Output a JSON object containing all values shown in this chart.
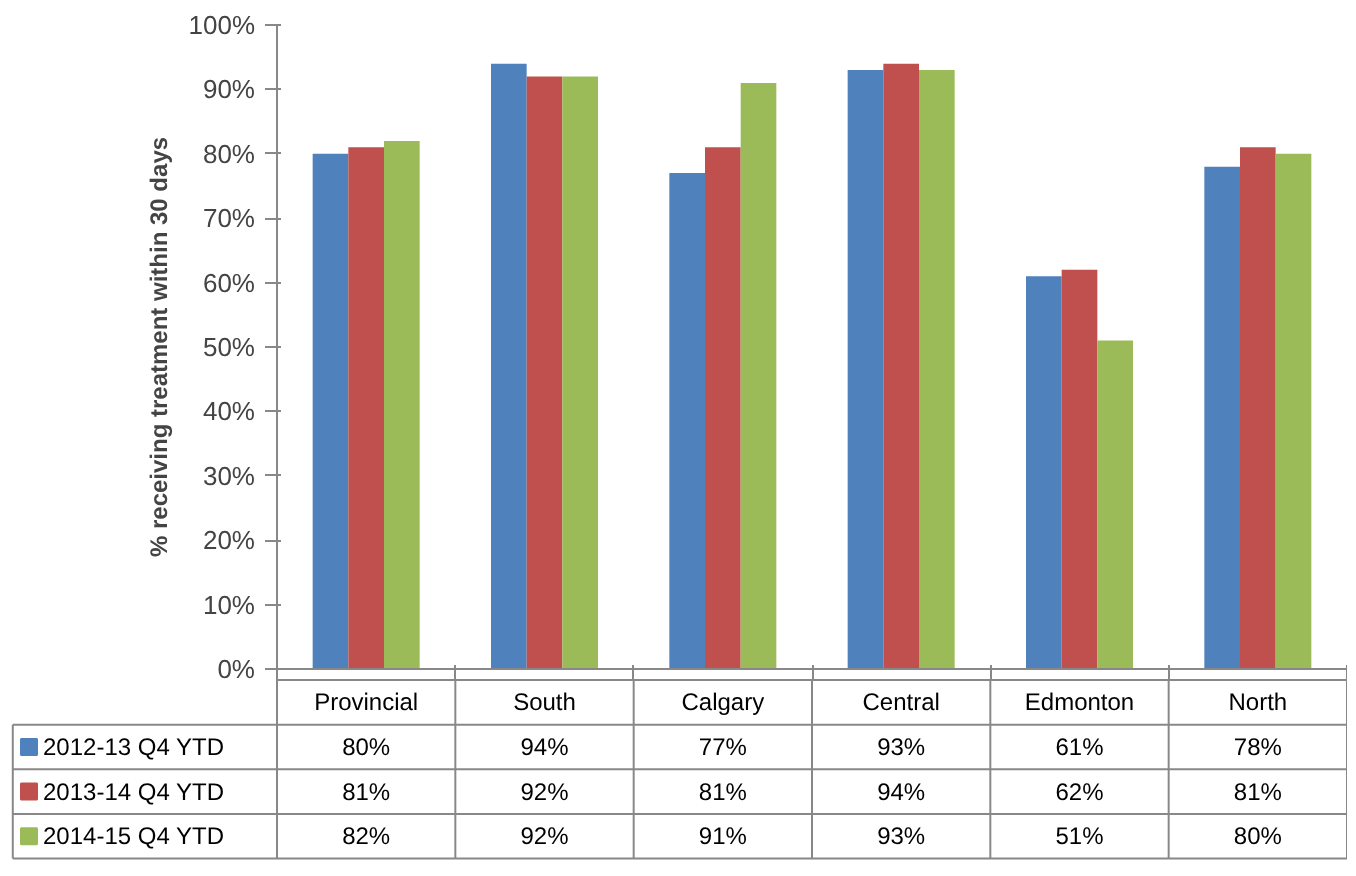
{
  "chart_data": {
    "type": "bar",
    "ylabel": "% receiving treatment within 30 days",
    "categories": [
      "Provincial",
      "South",
      "Calgary",
      "Central",
      "Edmonton",
      "North"
    ],
    "series": [
      {
        "name": "2012-13 Q4 YTD",
        "color": "#4f81bd",
        "values": [
          80,
          94,
          77,
          93,
          61,
          78
        ],
        "value_labels": [
          "80%",
          "94%",
          "77%",
          "93%",
          "61%",
          "78%"
        ]
      },
      {
        "name": "2013-14 Q4 YTD",
        "color": "#c0504d",
        "values": [
          81,
          92,
          81,
          94,
          62,
          81
        ],
        "value_labels": [
          "81%",
          "92%",
          "81%",
          "94%",
          "62%",
          "81%"
        ]
      },
      {
        "name": "2014-15 Q4 YTD",
        "color": "#9bbb59",
        "values": [
          82,
          92,
          91,
          93,
          51,
          80
        ],
        "value_labels": [
          "82%",
          "92%",
          "91%",
          "93%",
          "51%",
          "80%"
        ]
      }
    ],
    "ylim": [
      0,
      100
    ],
    "yticks": [
      {
        "value": 0,
        "label": "0%"
      },
      {
        "value": 10,
        "label": "10%"
      },
      {
        "value": 20,
        "label": "20%"
      },
      {
        "value": 30,
        "label": "30%"
      },
      {
        "value": 40,
        "label": "40%"
      },
      {
        "value": 50,
        "label": "50%"
      },
      {
        "value": 60,
        "label": "60%"
      },
      {
        "value": 70,
        "label": "70%"
      },
      {
        "value": 80,
        "label": "80%"
      },
      {
        "value": 90,
        "label": "90%"
      },
      {
        "value": 100,
        "label": "100%"
      }
    ],
    "grid": false,
    "legend": "bottom"
  }
}
